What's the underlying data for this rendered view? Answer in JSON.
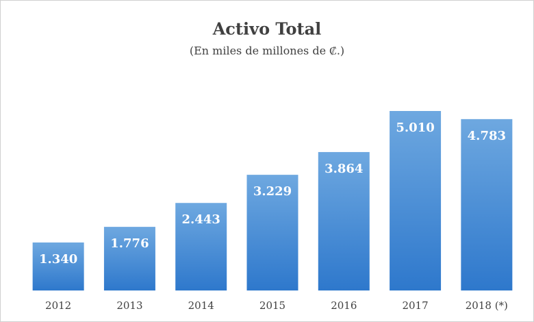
{
  "chart_data": {
    "type": "bar",
    "title": "Activo Total",
    "subtitle": "(En miles de millones de ₡.)",
    "categories": [
      "2012",
      "2013",
      "2014",
      "2015",
      "2016",
      "2017",
      "2018 (*)"
    ],
    "values": [
      1340,
      1776,
      2443,
      3229,
      3864,
      5010,
      4783
    ],
    "value_labels": [
      "1.340",
      "1.776",
      "2.443",
      "3.229",
      "3.864",
      "5.010",
      "4.783"
    ],
    "color": "#3d85d0"
  }
}
